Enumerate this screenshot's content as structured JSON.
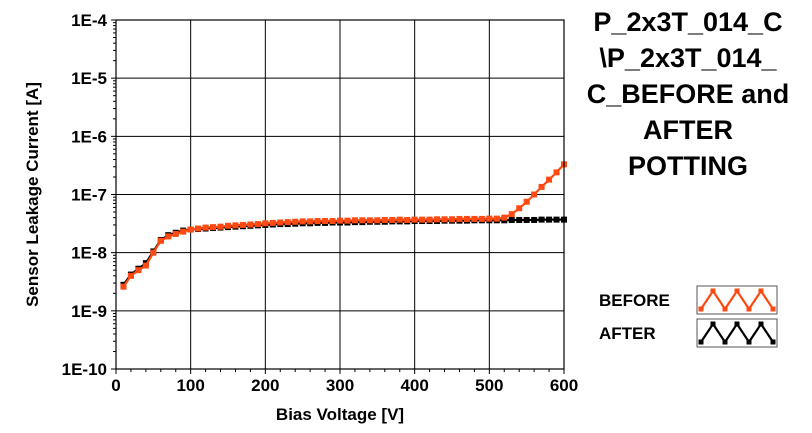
{
  "chart_data": {
    "type": "line",
    "title_lines": [
      "P_2x3T_014_C",
      "\\P_2x3T_014_",
      "C_BEFORE and",
      "AFTER",
      "POTTING"
    ],
    "xlabel": "Bias Voltage [V]",
    "ylabel": "Sensor Leakage Current [A]",
    "xlim": [
      0,
      600
    ],
    "ylim": [
      1e-10,
      0.0001
    ],
    "yscale": "log",
    "grid": true,
    "legend_position": "bottom-right",
    "x_ticks": [
      0,
      100,
      200,
      300,
      400,
      500,
      600
    ],
    "x_tick_labels": [
      "0",
      "100",
      "200",
      "300",
      "400",
      "500",
      "600"
    ],
    "y_ticks": [
      1e-10,
      1e-09,
      1e-08,
      1e-07,
      1e-06,
      1e-05,
      0.0001
    ],
    "y_tick_labels": [
      "1E-10",
      "1E-9",
      "1E-8",
      "1E-7",
      "1E-6",
      "1E-5",
      "1E-4"
    ],
    "x": [
      10,
      20,
      30,
      40,
      50,
      60,
      70,
      80,
      90,
      100,
      110,
      120,
      130,
      140,
      150,
      160,
      170,
      180,
      190,
      200,
      210,
      220,
      230,
      240,
      250,
      260,
      270,
      280,
      290,
      300,
      310,
      320,
      330,
      340,
      350,
      360,
      370,
      380,
      390,
      400,
      410,
      420,
      430,
      440,
      450,
      460,
      470,
      480,
      490,
      500,
      510,
      520,
      530,
      540,
      550,
      560,
      570,
      580,
      590,
      600
    ],
    "series": [
      {
        "name": "BEFORE",
        "color": "#ff4a14",
        "values": [
          2.6e-09,
          4e-09,
          5e-09,
          6e-09,
          1e-08,
          1.6e-08,
          1.9e-08,
          2.1e-08,
          2.3e-08,
          2.5e-08,
          2.6e-08,
          2.7e-08,
          2.75e-08,
          2.8e-08,
          2.9e-08,
          2.95e-08,
          3e-08,
          3.05e-08,
          3.1e-08,
          3.2e-08,
          3.25e-08,
          3.3e-08,
          3.35e-08,
          3.4e-08,
          3.45e-08,
          3.45e-08,
          3.5e-08,
          3.5e-08,
          3.5e-08,
          3.55e-08,
          3.55e-08,
          3.6e-08,
          3.6e-08,
          3.6e-08,
          3.6e-08,
          3.65e-08,
          3.65e-08,
          3.7e-08,
          3.65e-08,
          3.7e-08,
          3.7e-08,
          3.7e-08,
          3.75e-08,
          3.75e-08,
          3.75e-08,
          3.8e-08,
          3.8e-08,
          3.8e-08,
          3.8e-08,
          3.85e-08,
          3.85e-08,
          4e-08,
          4.6e-08,
          5.8e-08,
          7.5e-08,
          1e-07,
          1.35e-07,
          1.8e-07,
          2.4e-07,
          3.3e-07
        ]
      },
      {
        "name": "AFTER",
        "color": "#000000",
        "values": [
          2.8e-09,
          4.2e-09,
          5.3e-09,
          6.6e-09,
          1.05e-08,
          1.65e-08,
          2e-08,
          2.2e-08,
          2.4e-08,
          2.5e-08,
          2.55e-08,
          2.6e-08,
          2.65e-08,
          2.7e-08,
          2.75e-08,
          2.8e-08,
          2.85e-08,
          2.9e-08,
          2.95e-08,
          3e-08,
          3.05e-08,
          3.1e-08,
          3.1e-08,
          3.15e-08,
          3.2e-08,
          3.2e-08,
          3.25e-08,
          3.25e-08,
          3.3e-08,
          3.3e-08,
          3.3e-08,
          3.35e-08,
          3.35e-08,
          3.4e-08,
          3.4e-08,
          3.4e-08,
          3.45e-08,
          3.45e-08,
          3.45e-08,
          3.5e-08,
          3.5e-08,
          3.5e-08,
          3.5e-08,
          3.55e-08,
          3.55e-08,
          3.55e-08,
          3.55e-08,
          3.6e-08,
          3.6e-08,
          3.6e-08,
          3.6e-08,
          3.6e-08,
          3.65e-08,
          3.65e-08,
          3.65e-08,
          3.65e-08,
          3.7e-08,
          3.7e-08,
          3.7e-08,
          3.7e-08
        ]
      }
    ]
  }
}
